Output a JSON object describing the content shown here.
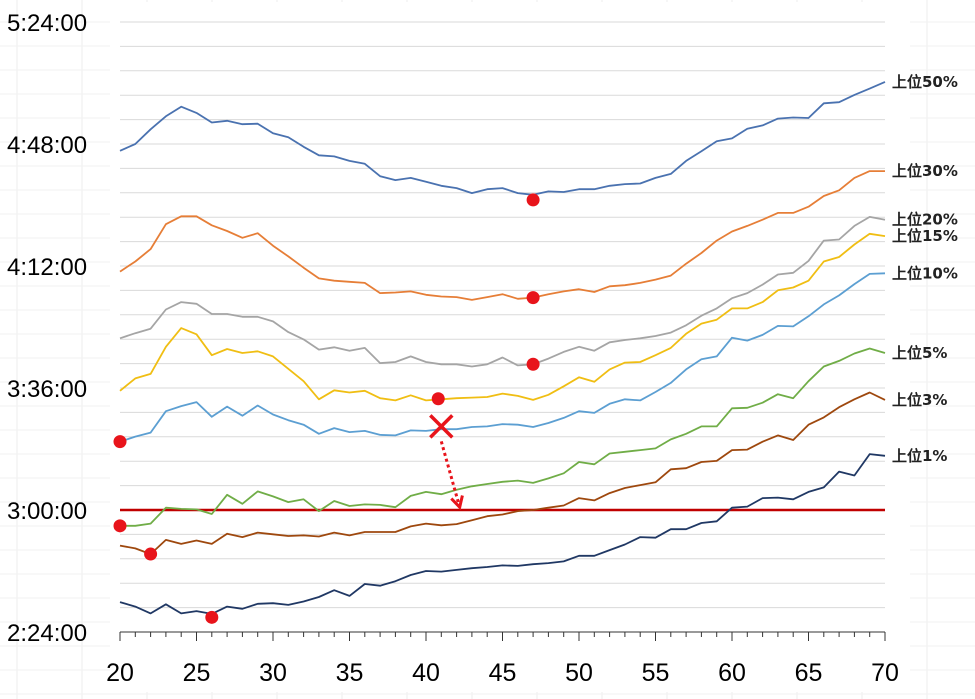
{
  "chart_data": {
    "type": "line",
    "title": "",
    "xlabel": "",
    "ylabel": "",
    "x": [
      20,
      21,
      22,
      23,
      24,
      25,
      26,
      27,
      28,
      29,
      30,
      31,
      32,
      33,
      34,
      35,
      36,
      37,
      38,
      39,
      40,
      41,
      42,
      43,
      44,
      45,
      46,
      47,
      48,
      49,
      50,
      51,
      52,
      53,
      54,
      55,
      56,
      57,
      58,
      59,
      60,
      61,
      62,
      63,
      64,
      65,
      66,
      67,
      68,
      69,
      70
    ],
    "xlim": [
      20,
      70
    ],
    "ylim_seconds": [
      8640,
      19440
    ],
    "y_format": "h:mm:ss",
    "yticks_seconds": [
      8640,
      10800,
      12960,
      15120,
      17280,
      19440
    ],
    "ytick_labels": [
      "2:24:00",
      "3:00:00",
      "3:36:00",
      "4:12:00",
      "4:48:00",
      "5:24:00"
    ],
    "xticks": [
      20,
      25,
      30,
      35,
      40,
      45,
      50,
      55,
      60,
      65,
      70
    ],
    "xtick_labels": [
      "20",
      "25",
      "30",
      "35",
      "40",
      "45",
      "50",
      "55",
      "60",
      "65",
      "70"
    ],
    "grid": "horizontal minor lines every 432 seconds",
    "reference_line": {
      "y_seconds": 10800,
      "color": "#c00000"
    },
    "series": [
      {
        "name": "上位50%",
        "color": "#4a72b0",
        "values_seconds": [
          17160,
          17280,
          17540,
          17770,
          17940,
          17830,
          17660,
          17690,
          17630,
          17640,
          17470,
          17400,
          17230,
          17080,
          17060,
          16980,
          16930,
          16710,
          16640,
          16680,
          16610,
          16540,
          16500,
          16410,
          16480,
          16500,
          16410,
          16380,
          16440,
          16430,
          16480,
          16480,
          16540,
          16570,
          16580,
          16680,
          16750,
          16980,
          17150,
          17330,
          17380,
          17550,
          17610,
          17730,
          17750,
          17740,
          18000,
          18020,
          18150,
          18260,
          18380
        ]
      },
      {
        "name": "上位30%",
        "color": "#e67e37",
        "values_seconds": [
          15020,
          15200,
          15420,
          15860,
          16000,
          16000,
          15840,
          15740,
          15620,
          15700,
          15480,
          15290,
          15090,
          14900,
          14860,
          14840,
          14820,
          14640,
          14650,
          14670,
          14610,
          14580,
          14570,
          14520,
          14570,
          14620,
          14540,
          14560,
          14620,
          14670,
          14710,
          14660,
          14760,
          14780,
          14820,
          14880,
          14950,
          15160,
          15350,
          15570,
          15730,
          15830,
          15940,
          16060,
          16060,
          16170,
          16360,
          16460,
          16680,
          16800,
          16800
        ]
      },
      {
        "name": "上位20%",
        "color": "#a5a5a5",
        "values_seconds": [
          13840,
          13930,
          14010,
          14350,
          14480,
          14450,
          14270,
          14270,
          14220,
          14220,
          14140,
          13950,
          13820,
          13640,
          13680,
          13620,
          13670,
          13400,
          13420,
          13520,
          13420,
          13380,
          13380,
          13340,
          13380,
          13500,
          13360,
          13380,
          13480,
          13600,
          13690,
          13620,
          13770,
          13810,
          13840,
          13880,
          13940,
          14070,
          14240,
          14370,
          14550,
          14640,
          14790,
          14970,
          15000,
          15210,
          15570,
          15590,
          15830,
          15990,
          15940
        ]
      },
      {
        "name": "上位15%",
        "color": "#f0be13",
        "values_seconds": [
          12910,
          13130,
          13210,
          13690,
          14020,
          13910,
          13540,
          13650,
          13580,
          13610,
          13520,
          13300,
          13080,
          12760,
          12920,
          12880,
          12910,
          12780,
          12740,
          12830,
          12740,
          12760,
          12780,
          12790,
          12800,
          12860,
          12820,
          12750,
          12840,
          12990,
          13150,
          13070,
          13290,
          13410,
          13420,
          13540,
          13670,
          13920,
          14100,
          14170,
          14370,
          14370,
          14480,
          14690,
          14740,
          14860,
          15200,
          15280,
          15500,
          15690,
          15650
        ]
      },
      {
        "name": "上位10%",
        "color": "#5c9fd2",
        "values_seconds": [
          12010,
          12100,
          12170,
          12550,
          12640,
          12710,
          12450,
          12630,
          12470,
          12650,
          12490,
          12390,
          12310,
          12150,
          12250,
          12180,
          12200,
          12130,
          12120,
          12210,
          12200,
          12230,
          12230,
          12270,
          12280,
          12320,
          12310,
          12270,
          12340,
          12430,
          12550,
          12520,
          12680,
          12760,
          12740,
          12890,
          13050,
          13290,
          13470,
          13520,
          13850,
          13800,
          13900,
          14060,
          14050,
          14230,
          14440,
          14600,
          14800,
          14980,
          14990
        ]
      },
      {
        "name": "上位5%",
        "color": "#70ad47",
        "values_seconds": [
          10520,
          10520,
          10560,
          10840,
          10820,
          10810,
          10730,
          11070,
          10910,
          11130,
          11040,
          10940,
          10990,
          10780,
          10960,
          10870,
          10900,
          10890,
          10850,
          11050,
          11120,
          11080,
          11160,
          11220,
          11260,
          11300,
          11320,
          11280,
          11360,
          11450,
          11650,
          11610,
          11800,
          11830,
          11860,
          11890,
          12050,
          12150,
          12280,
          12280,
          12600,
          12610,
          12700,
          12850,
          12780,
          13080,
          13340,
          13440,
          13570,
          13660,
          13580
        ]
      },
      {
        "name": "上位3%",
        "color": "#9e480e",
        "values_seconds": [
          10170,
          10120,
          10020,
          10270,
          10200,
          10260,
          10200,
          10380,
          10320,
          10400,
          10370,
          10340,
          10350,
          10330,
          10400,
          10350,
          10410,
          10410,
          10410,
          10510,
          10560,
          10530,
          10550,
          10620,
          10690,
          10720,
          10780,
          10800,
          10840,
          10880,
          11010,
          10970,
          11100,
          11190,
          11240,
          11290,
          11520,
          11540,
          11650,
          11670,
          11860,
          11870,
          12010,
          12120,
          12040,
          12310,
          12440,
          12620,
          12760,
          12880,
          12750
        ]
      },
      {
        "name": "上位1%",
        "color": "#203864",
        "values_seconds": [
          9170,
          9090,
          8970,
          9130,
          8970,
          9010,
          8960,
          9090,
          9050,
          9140,
          9150,
          9120,
          9180,
          9260,
          9380,
          9280,
          9490,
          9460,
          9540,
          9650,
          9720,
          9710,
          9740,
          9770,
          9790,
          9820,
          9810,
          9840,
          9860,
          9890,
          9990,
          9990,
          10090,
          10190,
          10320,
          10310,
          10460,
          10460,
          10570,
          10600,
          10840,
          10860,
          11010,
          11020,
          10990,
          11120,
          11200,
          11480,
          11410,
          11790,
          11760
        ]
      }
    ],
    "markers": {
      "color": "#e8141b",
      "points": [
        {
          "x": 20,
          "y_seconds": 12010
        },
        {
          "x": 20,
          "y_seconds": 10520
        },
        {
          "x": 22,
          "y_seconds": 10020
        },
        {
          "x": 26,
          "y_seconds": 8900
        },
        {
          "x": 40.8,
          "y_seconds": 12770
        },
        {
          "x": 47,
          "y_seconds": 13380
        },
        {
          "x": 47,
          "y_seconds": 14560
        },
        {
          "x": 47,
          "y_seconds": 16290
        }
      ]
    },
    "annotation": {
      "type": "cross_with_dotted_arrow",
      "color": "#e8141b",
      "cross": {
        "x": 41,
        "y_seconds": 12280
      },
      "arrow_to": {
        "x": 42.2,
        "y_seconds": 10850
      }
    }
  }
}
